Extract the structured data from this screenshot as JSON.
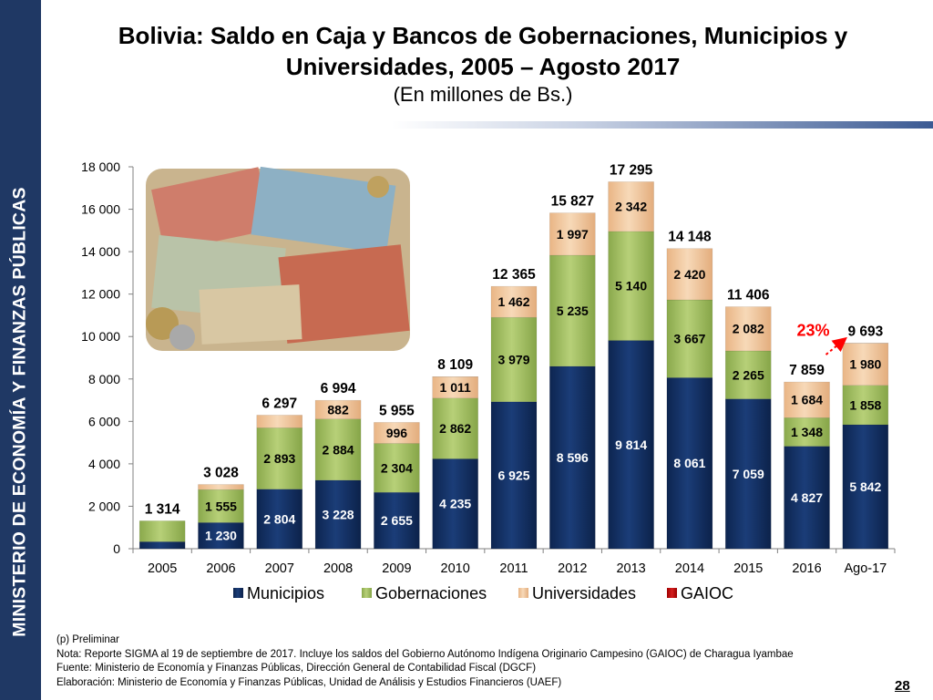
{
  "sidebar": {
    "text": "MINISTERIO DE ECONOMÍA Y FINANZAS PÚBLICAS"
  },
  "title": {
    "line1": "Bolivia: Saldo en Caja y Bancos de Gobernaciones, Municipios y",
    "line2": "Universidades, 2005 – Agosto 2017",
    "subtitle": "(En millones de Bs.)"
  },
  "chart_data": {
    "type": "bar",
    "stacked": true,
    "categories": [
      "2005",
      "2006",
      "2007",
      "2008",
      "2009",
      "2010",
      "2011",
      "2012",
      "2013",
      "2014",
      "2015",
      "2016",
      "Ago-17"
    ],
    "series": [
      {
        "name": "Municipios",
        "color": "#13305f",
        "values": [
          null,
          1230,
          2804,
          3228,
          2655,
          4235,
          6925,
          8596,
          9814,
          8061,
          7059,
          4827,
          5842
        ]
      },
      {
        "name": "Gobernaciones",
        "color": "#9bbb59",
        "values": [
          null,
          1555,
          2893,
          2884,
          2304,
          2862,
          3979,
          5235,
          5140,
          3667,
          2265,
          1348,
          1858
        ]
      },
      {
        "name": "Universidades",
        "color": "#f1c59d",
        "values": [
          null,
          null,
          null,
          882,
          996,
          1011,
          1462,
          1997,
          2342,
          2420,
          2082,
          1684,
          1980
        ]
      },
      {
        "name": "GAIOC",
        "color": "#c00000",
        "values": [
          null,
          null,
          null,
          null,
          null,
          null,
          null,
          null,
          null,
          null,
          null,
          null,
          null
        ]
      }
    ],
    "totals": [
      1314,
      3028,
      6297,
      6994,
      5955,
      8109,
      12365,
      15827,
      17295,
      14148,
      11406,
      7859,
      9693
    ],
    "total_labels": [
      "1 314",
      "3 028",
      "6 297",
      "6 994",
      "5 955",
      "8 109",
      "12 365",
      "15 827",
      "17 295",
      "14 148",
      "11 406",
      "7 859",
      "9 693"
    ],
    "segment_labels": [
      [
        "",
        "",
        ""
      ],
      [
        "1 230",
        "1 555",
        ""
      ],
      [
        "2 804",
        "2 893",
        ""
      ],
      [
        "3 228",
        "2 884",
        "882"
      ],
      [
        "2 655",
        "2 304",
        "996"
      ],
      [
        "4 235",
        "2 862",
        "1 011"
      ],
      [
        "6 925",
        "3 979",
        "1 462"
      ],
      [
        "8 596",
        "5 235",
        "1 997"
      ],
      [
        "9 814",
        "5 140",
        "2 342"
      ],
      [
        "8 061",
        "3 667",
        "2 420"
      ],
      [
        "7 059",
        "2 265",
        "2 082"
      ],
      [
        "4 827",
        "1 348",
        "1 684"
      ],
      [
        "5 842",
        "1 858",
        "1 980"
      ]
    ],
    "ylim": [
      0,
      18000
    ],
    "yticks": [
      0,
      2000,
      4000,
      6000,
      8000,
      10000,
      12000,
      14000,
      16000,
      18000
    ],
    "ytick_labels": [
      "0",
      "2 000",
      "4 000",
      "6 000",
      "8 000",
      "10 000",
      "12 000",
      "14 000",
      "16 000",
      "18 000"
    ],
    "legend": {
      "position": "bottom",
      "labels": [
        "Municipios",
        "Gobernaciones",
        "Universidades",
        "GAIOC"
      ]
    },
    "annotation": {
      "text": "23%",
      "color": "#ff0000",
      "from_category": "2016",
      "to_category": "Ago-17"
    },
    "xlabel": "",
    "ylabel": ""
  },
  "notes": {
    "preliminar": "(p) Preliminar",
    "nota": "Nota: Reporte SIGMA al 19 de septiembre de 2017. Incluye los saldos del Gobierno Autónomo Indígena Originario Campesino (GAIOC) de Charagua Iyambae",
    "fuente": "Fuente: Ministerio de Economía y Finanzas Públicas, Dirección General de Contabilidad Fiscal (DGCF)",
    "elaboracion": "Elaboración: Ministerio de Economía y Finanzas Públicas, Unidad de Análisis y Estudios Financieros (UAEF)"
  },
  "page_number": "28"
}
